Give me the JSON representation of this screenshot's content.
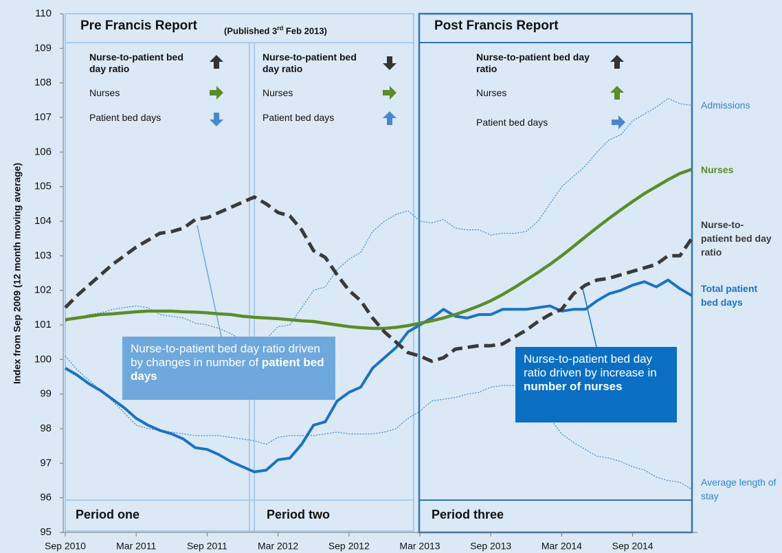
{
  "chart_data": {
    "type": "line",
    "y_label": "Index from Sep 2009 (12 month moving average)",
    "ylim": [
      95,
      110
    ],
    "yticks": [
      95,
      96,
      97,
      98,
      99,
      100,
      101,
      102,
      103,
      104,
      105,
      106,
      107,
      108,
      109,
      110
    ],
    "categories": [
      "Sep 2010",
      null,
      null,
      null,
      null,
      null,
      "Mar 2011",
      null,
      null,
      null,
      null,
      null,
      "Sep 2011",
      null,
      null,
      null,
      null,
      null,
      "Mar 2012",
      null,
      null,
      null,
      null,
      null,
      "Sep 2012",
      null,
      null,
      null,
      null,
      null,
      "Mar 2013",
      null,
      null,
      null,
      null,
      null,
      "Sep 2013",
      null,
      null,
      null,
      null,
      null,
      "Mar 2014",
      null,
      null,
      null,
      null,
      null,
      "Sep 2014",
      null,
      null,
      null,
      null,
      null
    ],
    "series": [
      {
        "name": "Admissions",
        "color": "#2f86d3",
        "line_style": "dotted",
        "line_width": 1.2,
        "values": [
          101.1,
          101.2,
          101.3,
          101.35,
          101.45,
          101.5,
          101.55,
          101.5,
          101.3,
          101.25,
          101.2,
          101.05,
          101.0,
          100.9,
          100.75,
          100.55,
          100.5,
          100.6,
          100.95,
          101.0,
          101.5,
          102.0,
          102.1,
          102.6,
          102.9,
          103.1,
          103.7,
          104.0,
          104.2,
          104.3,
          104.0,
          103.95,
          104.05,
          103.8,
          103.75,
          103.75,
          103.6,
          103.65,
          103.65,
          103.7,
          104.0,
          104.5,
          105.0,
          105.3,
          105.6,
          106.0,
          106.35,
          106.5,
          106.9,
          107.1,
          107.3,
          107.55,
          107.4,
          107.35
        ]
      },
      {
        "name": "Nurses",
        "color": "#5b8c2a",
        "line_style": "solid",
        "line_width": 4.5,
        "values": [
          101.15,
          101.2,
          101.25,
          101.3,
          101.32,
          101.35,
          101.38,
          101.4,
          101.4,
          101.4,
          101.38,
          101.37,
          101.35,
          101.32,
          101.3,
          101.25,
          101.22,
          101.2,
          101.18,
          101.15,
          101.12,
          101.1,
          101.05,
          101.0,
          100.95,
          100.92,
          100.9,
          100.9,
          100.93,
          100.98,
          101.05,
          101.12,
          101.2,
          101.3,
          101.42,
          101.55,
          101.7,
          101.88,
          102.08,
          102.3,
          102.52,
          102.75,
          103.0,
          103.27,
          103.55,
          103.82,
          104.08,
          104.33,
          104.57,
          104.8,
          105.0,
          105.2,
          105.38,
          105.5
        ]
      },
      {
        "name": "Nurse-to-patient bed day ratio",
        "color": "#3a3a3a",
        "line_style": "dashed",
        "line_width": 5,
        "values": [
          101.5,
          101.85,
          102.15,
          102.45,
          102.75,
          103.0,
          103.25,
          103.45,
          103.65,
          103.7,
          103.8,
          104.05,
          104.1,
          104.25,
          104.4,
          104.55,
          104.7,
          104.5,
          104.25,
          104.15,
          103.75,
          103.15,
          102.95,
          102.45,
          102.0,
          101.7,
          101.2,
          100.8,
          100.5,
          100.2,
          100.1,
          99.95,
          100.05,
          100.3,
          100.35,
          100.4,
          100.4,
          100.45,
          100.65,
          100.85,
          101.1,
          101.3,
          101.45,
          101.9,
          102.15,
          102.3,
          102.35,
          102.45,
          102.55,
          102.65,
          102.75,
          103.0,
          103.0,
          103.5
        ]
      },
      {
        "name": "Total patient bed days",
        "color": "#1b72c4",
        "line_style": "solid",
        "line_width": 4,
        "values": [
          99.75,
          99.55,
          99.3,
          99.1,
          98.85,
          98.6,
          98.3,
          98.1,
          97.95,
          97.85,
          97.7,
          97.45,
          97.4,
          97.25,
          97.05,
          96.9,
          96.75,
          96.8,
          97.1,
          97.15,
          97.55,
          98.1,
          98.2,
          98.8,
          99.05,
          99.2,
          99.75,
          100.05,
          100.35,
          100.8,
          101.0,
          101.2,
          101.45,
          101.25,
          101.2,
          101.3,
          101.3,
          101.45,
          101.45,
          101.45,
          101.5,
          101.55,
          101.4,
          101.45,
          101.45,
          101.7,
          101.9,
          102.0,
          102.15,
          102.25,
          102.1,
          102.3,
          102.05,
          101.85
        ]
      },
      {
        "name": "Average length of stay",
        "color": "#2f86d3",
        "line_style": "dotted",
        "line_width": 1.2,
        "values": [
          100.1,
          99.7,
          99.4,
          99.1,
          98.8,
          98.45,
          98.1,
          98.0,
          97.95,
          97.9,
          97.85,
          97.8,
          97.8,
          97.8,
          97.75,
          97.7,
          97.65,
          97.55,
          97.75,
          97.8,
          97.8,
          97.8,
          97.85,
          97.9,
          97.85,
          97.85,
          97.85,
          97.9,
          98.0,
          98.3,
          98.5,
          98.8,
          98.85,
          98.9,
          99.0,
          99.05,
          99.2,
          99.25,
          99.25,
          99.1,
          98.7,
          98.3,
          97.85,
          97.6,
          97.4,
          97.2,
          97.15,
          97.05,
          96.9,
          96.8,
          96.6,
          96.5,
          96.45,
          96.25
        ]
      }
    ],
    "panels": [
      {
        "title": "Pre Francis Report",
        "note": [
          "(Published 3",
          "rd",
          " Feb 2013)"
        ]
      },
      {
        "title": "Post Francis Report"
      }
    ],
    "periods": [
      "Period one",
      "Period two",
      "Period three"
    ],
    "indicators": [
      [
        "Nurse-to-patient bed day ratio",
        "Nurses",
        "Patient bed days"
      ],
      [
        "Nurse-to-patient bed day ratio",
        "Nurses",
        "Patient bed days"
      ],
      [
        "Nurse-to-patient bed day ratio",
        "Nurses",
        "Patient bed days"
      ]
    ],
    "callouts": [
      {
        "text": "Nurse-to-patient bed day ratio driven by changes in number of ",
        "bold": "patient bed days"
      },
      {
        "text": "Nurse-to-patient bed day ratio driven by increase in ",
        "bold": "number of nurses"
      }
    ]
  }
}
